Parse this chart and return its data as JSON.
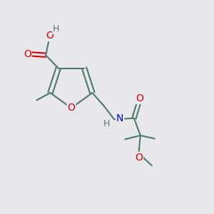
{
  "background_color": "#e8e8ec",
  "bond_color": "#4a7a6a",
  "atom_colors": {
    "O": "#dd0000",
    "N": "#0000cc",
    "H": "#557a6a",
    "C": "#4a7a6a"
  },
  "font_size": 10,
  "lw": 1.5
}
